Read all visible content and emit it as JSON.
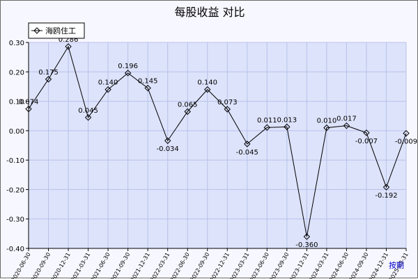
{
  "chart_data": {
    "type": "line",
    "title": "每股收益  对比",
    "categories": [
      "2020-06-30",
      "2020-09-30",
      "2020-12-31",
      "2021-03-31",
      "2021-06-30",
      "2021-09-30",
      "2021-12-31",
      "2022-03-31",
      "2022-06-30",
      "2022-09-30",
      "2022-12-31",
      "2023-03-31",
      "2023-06-30",
      "2023-09-30",
      "2023-12-31",
      "2024-03-31",
      "2024-06-30",
      "2024-09-30",
      "2024-12-31",
      "2025-03-31"
    ],
    "series": [
      {
        "name": "海鸥住工",
        "values": [
          0.074,
          0.175,
          0.286,
          0.045,
          0.14,
          0.196,
          0.145,
          -0.034,
          0.065,
          0.14,
          0.073,
          -0.045,
          0.011,
          0.013,
          -0.36,
          0.01,
          0.017,
          -0.007,
          -0.192,
          -0.009
        ],
        "labels": [
          "0.074",
          "0.175",
          "0.286",
          "0.045",
          "0.140",
          "0.196",
          "0.145",
          "-0.034",
          "0.065",
          "0.140",
          "0.073",
          "-0.045",
          "0.011",
          "0.013",
          "-0.360",
          "0.010",
          "0.017",
          "-0.007",
          "-0.192",
          "-0.009"
        ],
        "color": "#000000"
      }
    ],
    "y_ticks": [
      "0.30",
      "0.20",
      "0.10",
      "0.00",
      "-0.10",
      "-0.20",
      "-0.30",
      "-0.40"
    ],
    "ylim": [
      -0.4,
      0.3
    ],
    "grid": true,
    "legend_position": "top-left",
    "plot_background": "#dde3fa",
    "grid_color": "#b8c2ea",
    "period_link_label": "按期",
    "period_link_color": "#0000cc"
  }
}
